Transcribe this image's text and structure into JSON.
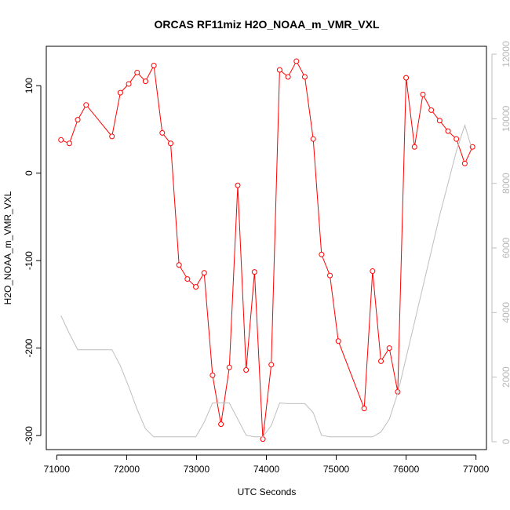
{
  "chart_data": {
    "type": "line",
    "title": "ORCAS RF11miz H2O_NOAA_m_VMR_VXL",
    "xlabel": "UTC Seconds",
    "ylabel": "H2O_NOAA_m_VMR_VXL",
    "xlim": [
      70850,
      77150
    ],
    "ylim": [
      -316,
      145
    ],
    "y2lim": [
      -244,
      12244
    ],
    "x_ticks": [
      71000,
      72000,
      73000,
      74000,
      75000,
      76000,
      77000
    ],
    "y_ticks": [
      -300,
      -200,
      -100,
      0,
      100
    ],
    "y2_ticks": [
      0,
      2000,
      4000,
      6000,
      8000,
      10000,
      12000
    ],
    "colors": {
      "primary": "#ff0000",
      "secondary": "#bebebe"
    },
    "series": [
      {
        "axis": "left",
        "style": "line+markers",
        "x": [
          71060,
          71180,
          71300,
          71420,
          71790,
          71910,
          72030,
          72150,
          72270,
          72390,
          72510,
          72630,
          72750,
          72870,
          72990,
          73110,
          73230,
          73350,
          73470,
          73590,
          73710,
          73830,
          73950,
          74070,
          74190,
          74310,
          74430,
          74550,
          74670,
          74790,
          74910,
          75030,
          75400,
          75520,
          75640,
          75760,
          75880,
          76000,
          76120,
          76240,
          76360,
          76480,
          76600,
          76720,
          76840,
          76950
        ],
        "y": [
          38,
          34,
          61,
          78,
          42,
          92,
          102,
          115,
          105,
          123,
          46,
          34,
          -105,
          -121,
          -130,
          -114,
          -231,
          -287,
          -222,
          -14,
          -225,
          -113,
          -304,
          -219,
          118,
          110,
          128,
          110,
          39,
          -93,
          -117,
          -192,
          -269,
          -112,
          -215,
          -200,
          -250,
          109,
          30,
          90,
          72,
          60,
          48,
          39,
          11,
          30
        ]
      },
      {
        "axis": "right",
        "style": "line",
        "x": [
          71060,
          71180,
          71300,
          71420,
          71790,
          71910,
          72030,
          72150,
          72270,
          72390,
          72510,
          72630,
          72750,
          72870,
          72990,
          73110,
          73230,
          73350,
          73470,
          73590,
          73710,
          73830,
          73950,
          74070,
          74190,
          74310,
          74430,
          74550,
          74670,
          74790,
          74910,
          75030,
          75400,
          75520,
          75640,
          75760,
          75880,
          76000,
          76120,
          76240,
          76360,
          76480,
          76600,
          76720,
          76840,
          76950
        ],
        "y": [
          3900,
          3350,
          2850,
          2850,
          2850,
          2350,
          1700,
          1000,
          400,
          150,
          150,
          150,
          150,
          150,
          150,
          600,
          1200,
          1200,
          1200,
          700,
          200,
          150,
          150,
          500,
          1200,
          1180,
          1180,
          1180,
          900,
          200,
          150,
          150,
          150,
          150,
          300,
          700,
          1500,
          2600,
          3700,
          4800,
          5900,
          7000,
          8000,
          9000,
          9800,
          9000
        ]
      }
    ]
  }
}
